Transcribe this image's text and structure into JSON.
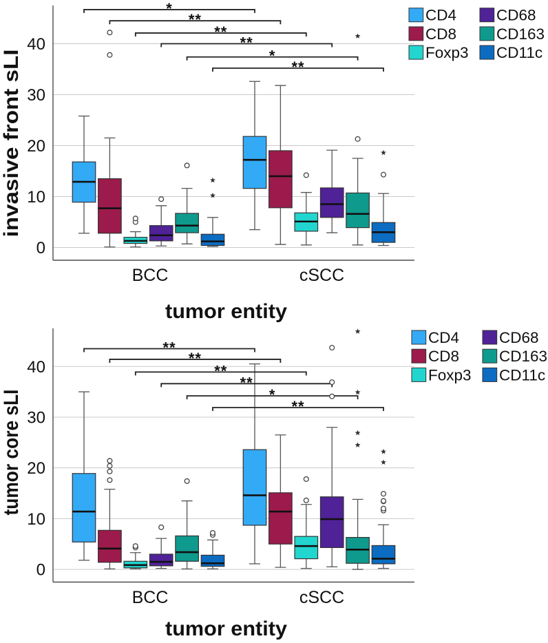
{
  "chart_data": [
    {
      "type": "boxplot",
      "title": "",
      "xlabel": "tumor entity",
      "ylabel": "invasive front sLI",
      "categories": [
        "BCC",
        "cSCC"
      ],
      "ylim": [
        -2.5,
        47.5
      ],
      "yticks": [
        0,
        10,
        20,
        30,
        40
      ],
      "ytick_labels": [
        "0",
        "10",
        "20",
        "30",
        "40"
      ],
      "grid": true,
      "legend": {
        "position": "top-right",
        "columns": 2
      },
      "series": [
        {
          "name": "CD4",
          "color": "#33aaf5",
          "boxes": [
            {
              "category": "BCC",
              "whisker_low": 2.8,
              "q1": 8.9,
              "median": 12.9,
              "q3": 16.8,
              "whisker_high": 25.8,
              "outliers": [],
              "extremes": []
            },
            {
              "category": "cSCC",
              "whisker_low": 3.5,
              "q1": 11.6,
              "median": 17.2,
              "q3": 21.8,
              "whisker_high": 32.6,
              "outliers": [],
              "extremes": []
            }
          ]
        },
        {
          "name": "CD8",
          "color": "#9c1b4c",
          "boxes": [
            {
              "category": "BCC",
              "whisker_low": 0.1,
              "q1": 2.8,
              "median": 7.7,
              "q3": 13.5,
              "whisker_high": 21.5,
              "outliers": [
                37.8,
                42.2
              ],
              "extremes": []
            },
            {
              "category": "cSCC",
              "whisker_low": 0.6,
              "q1": 7.8,
              "median": 14.0,
              "q3": 19.0,
              "whisker_high": 31.8,
              "outliers": [],
              "extremes": []
            }
          ]
        },
        {
          "name": "Foxp3",
          "color": "#22d5cf",
          "boxes": [
            {
              "category": "BCC",
              "whisker_low": 0.1,
              "q1": 0.8,
              "median": 1.3,
              "q3": 2.0,
              "whisker_high": 3.1,
              "outliers": [
                5.0,
                5.7
              ],
              "extremes": []
            },
            {
              "category": "cSCC",
              "whisker_low": 0.5,
              "q1": 3.2,
              "median": 5.1,
              "q3": 6.8,
              "whisker_high": 10.8,
              "outliers": [
                14.2
              ],
              "extremes": []
            }
          ]
        },
        {
          "name": "CD68",
          "color": "#4f2298",
          "boxes": [
            {
              "category": "BCC",
              "whisker_low": 0.3,
              "q1": 1.3,
              "median": 2.4,
              "q3": 4.3,
              "whisker_high": 8.2,
              "outliers": [
                9.5
              ],
              "extremes": []
            },
            {
              "category": "cSCC",
              "whisker_low": 2.9,
              "q1": 5.9,
              "median": 8.5,
              "q3": 11.7,
              "whisker_high": 19.1,
              "outliers": [],
              "extremes": []
            }
          ]
        },
        {
          "name": "CD163",
          "color": "#0f9a8e",
          "boxes": [
            {
              "category": "BCC",
              "whisker_low": 0.7,
              "q1": 2.9,
              "median": 4.3,
              "q3": 6.7,
              "whisker_high": 11.6,
              "outliers": [
                16.1
              ],
              "extremes": []
            },
            {
              "category": "cSCC",
              "whisker_low": 0.5,
              "q1": 3.9,
              "median": 6.6,
              "q3": 10.7,
              "whisker_high": 17.5,
              "outliers": [
                21.3
              ],
              "extremes": [
                41.5
              ]
            }
          ]
        },
        {
          "name": "CD11c",
          "color": "#0b6cc2",
          "boxes": [
            {
              "category": "BCC",
              "whisker_low": 0.2,
              "q1": 0.4,
              "median": 1.2,
              "q3": 2.6,
              "whisker_high": 5.9,
              "outliers": [],
              "extremes": [
                10.2,
                13.2
              ]
            },
            {
              "category": "cSCC",
              "whisker_low": 0.4,
              "q1": 1.0,
              "median": 3.0,
              "q3": 4.9,
              "whisker_high": 10.6,
              "outliers": [
                14.3
              ],
              "extremes": [
                18.6
              ]
            }
          ]
        }
      ],
      "significance": [
        {
          "series": "CD4",
          "from": "BCC",
          "to": "cSCC",
          "label": "*",
          "y": 46.7
        },
        {
          "series": "CD8",
          "from": "BCC",
          "to": "cSCC",
          "label": "**",
          "y": 44.5
        },
        {
          "series": "Foxp3",
          "from": "BCC",
          "to": "cSCC",
          "label": "**",
          "y": 42.1
        },
        {
          "series": "CD68",
          "from": "BCC",
          "to": "cSCC",
          "label": "**",
          "y": 40.0
        },
        {
          "series": "CD163",
          "from": "BCC",
          "to": "cSCC",
          "label": "*",
          "y": 37.4
        },
        {
          "series": "CD11c",
          "from": "BCC",
          "to": "cSCC",
          "label": "**",
          "y": 35.2
        }
      ]
    },
    {
      "type": "boxplot",
      "title": "",
      "xlabel": "tumor entity",
      "ylabel": "tumor core sLI",
      "categories": [
        "BCC",
        "cSCC"
      ],
      "ylim": [
        -2.5,
        47.5
      ],
      "yticks": [
        0,
        10,
        20,
        30,
        40
      ],
      "ytick_labels": [
        "0",
        "10",
        "20",
        "30",
        "40"
      ],
      "grid": true,
      "legend": {
        "position": "top-right",
        "columns": 2
      },
      "series": [
        {
          "name": "CD4",
          "color": "#33aaf5",
          "boxes": [
            {
              "category": "BCC",
              "whisker_low": 1.8,
              "q1": 5.4,
              "median": 11.4,
              "q3": 18.9,
              "whisker_high": 35.0,
              "outliers": [],
              "extremes": []
            },
            {
              "category": "cSCC",
              "whisker_low": 1.1,
              "q1": 8.7,
              "median": 14.6,
              "q3": 23.6,
              "whisker_high": 40.5,
              "outliers": [],
              "extremes": []
            }
          ]
        },
        {
          "name": "CD8",
          "color": "#9c1b4c",
          "boxes": [
            {
              "category": "BCC",
              "whisker_low": 0.1,
              "q1": 1.4,
              "median": 4.1,
              "q3": 7.7,
              "whisker_high": 15.8,
              "outliers": [
                17.6,
                19.3,
                20.4,
                21.4
              ],
              "extremes": []
            },
            {
              "category": "cSCC",
              "whisker_low": 0.4,
              "q1": 5.0,
              "median": 11.4,
              "q3": 15.1,
              "whisker_high": 26.5,
              "outliers": [],
              "extremes": []
            }
          ]
        },
        {
          "name": "Foxp3",
          "color": "#22d5cf",
          "boxes": [
            {
              "category": "BCC",
              "whisker_low": 0.1,
              "q1": 0.3,
              "median": 0.85,
              "q3": 1.6,
              "whisker_high": 3.3,
              "outliers": [
                4.3,
                4.6
              ],
              "extremes": []
            },
            {
              "category": "cSCC",
              "whisker_low": 0.2,
              "q1": 2.1,
              "median": 4.6,
              "q3": 6.5,
              "whisker_high": 12.8,
              "outliers": [
                13.6,
                17.8
              ],
              "extremes": []
            }
          ]
        },
        {
          "name": "CD68",
          "color": "#4f2298",
          "boxes": [
            {
              "category": "BCC",
              "whisker_low": 0.2,
              "q1": 0.7,
              "median": 1.5,
              "q3": 3.0,
              "whisker_high": 6.1,
              "outliers": [
                8.3
              ],
              "extremes": []
            },
            {
              "category": "cSCC",
              "whisker_low": 0.5,
              "q1": 4.3,
              "median": 9.9,
              "q3": 14.3,
              "whisker_high": 28.0,
              "outliers": [
                34.1,
                36.9,
                43.7
              ],
              "extremes": []
            }
          ]
        },
        {
          "name": "CD163",
          "color": "#0f9a8e",
          "boxes": [
            {
              "category": "BCC",
              "whisker_low": 0.1,
              "q1": 1.6,
              "median": 3.4,
              "q3": 6.6,
              "whisker_high": 13.5,
              "outliers": [
                17.4
              ],
              "extremes": []
            },
            {
              "category": "cSCC",
              "whisker_low": 0.0,
              "q1": 1.2,
              "median": 3.9,
              "q3": 6.3,
              "whisker_high": 13.8,
              "outliers": [],
              "extremes": [
                24.5,
                26.9,
                34.9,
                46.9
              ]
            }
          ]
        },
        {
          "name": "CD11c",
          "color": "#0b6cc2",
          "boxes": [
            {
              "category": "BCC",
              "whisker_low": 0.1,
              "q1": 0.6,
              "median": 1.2,
              "q3": 2.8,
              "whisker_high": 5.8,
              "outliers": [
                6.8,
                7.2
              ],
              "extremes": []
            },
            {
              "category": "cSCC",
              "whisker_low": 0.2,
              "q1": 1.1,
              "median": 2.1,
              "q3": 4.7,
              "whisker_high": 8.8,
              "outliers": [
                11.6,
                12.0,
                13.4,
                13.5,
                14.9
              ],
              "extremes": [
                21.1,
                23.2
              ]
            }
          ]
        }
      ],
      "significance": [
        {
          "series": "CD4",
          "from": "BCC",
          "to": "cSCC",
          "label": "**",
          "y": 43.5
        },
        {
          "series": "CD8",
          "from": "BCC",
          "to": "cSCC",
          "label": "**",
          "y": 41.4
        },
        {
          "series": "Foxp3",
          "from": "BCC",
          "to": "cSCC",
          "label": "**",
          "y": 38.9
        },
        {
          "series": "CD68",
          "from": "BCC",
          "to": "cSCC",
          "label": "**",
          "y": 36.6
        },
        {
          "series": "CD163",
          "from": "BCC",
          "to": "cSCC",
          "label": "*",
          "y": 34.2
        },
        {
          "series": "CD11c",
          "from": "BCC",
          "to": "cSCC",
          "label": "**",
          "y": 31.9
        }
      ]
    }
  ]
}
